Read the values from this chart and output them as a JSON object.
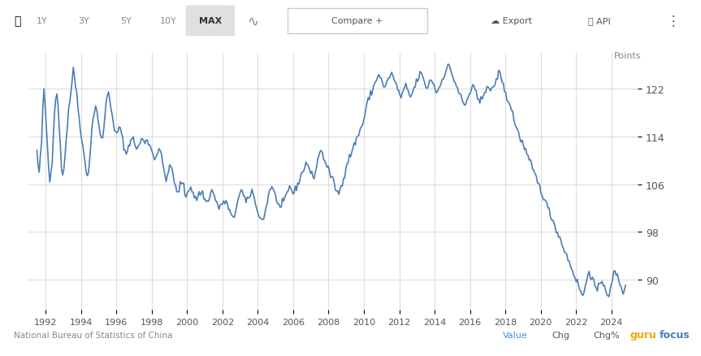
{
  "title": "",
  "ylabel": "Points",
  "xlabel": "",
  "bg_color": "#ffffff",
  "plot_bg_color": "#ffffff",
  "grid_color": "#dddddd",
  "line_color": "#4a7db5",
  "line_width": 1.2,
  "ylim": [
    85,
    128
  ],
  "yticks": [
    90,
    98,
    106,
    114,
    122
  ],
  "xtick_years": [
    1992,
    1994,
    1996,
    1998,
    2000,
    2002,
    2004,
    2006,
    2008,
    2010,
    2012,
    2014,
    2016,
    2018,
    2020,
    2022,
    2024
  ],
  "footer_left": "National Bureau of Statistics of China",
  "footer_right_value": "Value",
  "footer_right_chg": "Chg",
  "footer_right_chgpct": "Chg%",
  "header_tabs": [
    "1Y",
    "3Y",
    "5Y",
    "10Y",
    "MAX"
  ],
  "header_active": "MAX",
  "points_label": "Points",
  "x_start": 1991.5,
  "x_end": 2024.8,
  "xlim_left": 1991.0,
  "xlim_right": 2025.5,
  "series": [
    111.5,
    109.2,
    107.8,
    110.5,
    113.0,
    118.5,
    121.5,
    119.0,
    116.0,
    112.5,
    109.0,
    106.5,
    108.0,
    110.0,
    114.5,
    118.0,
    120.5,
    121.0,
    119.5,
    116.0,
    112.0,
    108.5,
    107.5,
    109.0,
    111.0,
    113.5,
    116.0,
    118.5,
    120.0,
    121.5,
    123.5,
    125.0,
    124.0,
    122.5,
    121.0,
    119.0,
    117.0,
    115.5,
    114.0,
    112.5,
    111.0,
    109.5,
    108.0,
    107.5,
    108.5,
    110.5,
    113.0,
    115.5,
    117.0,
    118.5,
    119.0,
    118.5,
    117.0,
    115.5,
    114.0,
    113.5,
    114.0,
    115.5,
    117.5,
    119.5,
    121.0,
    121.5,
    120.5,
    119.0,
    117.5,
    116.0,
    115.0,
    114.5,
    114.5,
    115.0,
    115.5,
    115.0,
    114.5,
    113.5,
    112.5,
    111.5,
    111.0,
    111.5,
    112.5,
    113.0,
    113.5,
    113.5,
    113.5,
    113.0,
    112.5,
    112.0,
    112.0,
    112.5,
    113.0,
    113.5,
    113.5,
    113.0,
    113.0,
    113.5,
    113.5,
    113.0,
    112.5,
    112.0,
    111.5,
    111.0,
    110.5,
    110.5,
    111.0,
    111.5,
    112.0,
    111.5,
    110.5,
    109.5,
    108.5,
    107.5,
    107.0,
    107.5,
    108.0,
    108.5,
    109.0,
    108.5,
    107.5,
    106.5,
    105.5,
    104.5,
    104.5,
    105.0,
    106.0,
    106.5,
    106.0,
    105.5,
    104.5,
    104.0,
    104.5,
    105.0,
    105.5,
    105.5,
    105.0,
    104.5,
    104.0,
    103.5,
    103.5,
    104.0,
    104.5,
    104.5,
    104.5,
    104.5,
    104.0,
    103.5,
    103.0,
    103.0,
    103.5,
    104.0,
    104.5,
    105.0,
    104.5,
    104.0,
    103.5,
    103.0,
    102.5,
    102.0,
    102.0,
    102.5,
    103.0,
    103.0,
    103.0,
    103.0,
    102.5,
    102.0,
    101.5,
    101.0,
    100.5,
    100.0,
    100.5,
    101.5,
    102.5,
    103.5,
    104.0,
    104.5,
    105.0,
    104.5,
    104.0,
    103.5,
    103.0,
    103.0,
    103.5,
    104.0,
    104.5,
    105.0,
    104.5,
    103.5,
    102.5,
    102.0,
    101.5,
    101.0,
    100.5,
    100.0,
    100.0,
    100.5,
    101.0,
    102.0,
    103.0,
    104.0,
    105.0,
    105.5,
    105.5,
    105.0,
    104.5,
    104.0,
    103.5,
    103.0,
    102.5,
    102.0,
    102.0,
    102.5,
    103.0,
    103.5,
    104.0,
    104.5,
    105.0,
    105.5,
    105.5,
    105.0,
    104.5,
    104.5,
    105.0,
    105.5,
    106.0,
    106.5,
    107.0,
    107.5,
    108.0,
    108.5,
    109.0,
    109.5,
    109.5,
    109.0,
    108.5,
    108.0,
    107.5,
    107.0,
    107.5,
    108.0,
    109.0,
    110.0,
    111.0,
    111.5,
    111.5,
    111.0,
    110.5,
    110.0,
    109.5,
    109.0,
    108.5,
    108.0,
    107.5,
    107.0,
    106.5,
    106.0,
    105.5,
    105.0,
    104.5,
    104.5,
    105.0,
    105.5,
    106.0,
    107.0,
    108.0,
    109.0,
    109.5,
    110.0,
    110.5,
    111.0,
    111.5,
    112.0,
    112.5,
    113.0,
    113.5,
    114.0,
    114.5,
    115.0,
    115.5,
    116.0,
    116.5,
    117.5,
    118.5,
    119.5,
    120.0,
    120.5,
    121.0,
    121.5,
    122.0,
    122.5,
    123.0,
    123.5,
    124.0,
    124.5,
    124.0,
    123.5,
    123.0,
    122.5,
    122.0,
    122.5,
    123.0,
    123.5,
    124.0,
    124.5,
    124.5,
    124.0,
    123.5,
    123.0,
    122.5,
    122.0,
    121.5,
    121.0,
    120.5,
    121.0,
    121.5,
    122.0,
    122.5,
    122.0,
    121.5,
    121.0,
    120.5,
    121.0,
    121.5,
    122.0,
    122.5,
    123.0,
    123.5,
    124.0,
    124.5,
    124.5,
    124.0,
    123.5,
    123.0,
    122.5,
    122.0,
    122.5,
    123.0,
    123.5,
    123.5,
    123.0,
    122.5,
    122.0,
    121.5,
    121.5,
    122.0,
    122.5,
    123.0,
    123.5,
    124.0,
    124.5,
    125.0,
    125.5,
    126.0,
    125.5,
    125.0,
    124.5,
    124.0,
    123.5,
    123.0,
    122.5,
    122.0,
    121.5,
    121.0,
    120.5,
    120.0,
    119.5,
    119.0,
    119.5,
    120.0,
    120.5,
    121.0,
    121.5,
    122.0,
    122.5,
    122.0,
    121.5,
    121.0,
    120.5,
    120.0,
    119.5,
    120.0,
    120.5,
    121.0,
    121.5,
    122.0,
    122.5,
    122.5,
    122.0,
    121.5,
    121.5,
    122.0,
    122.5,
    123.0,
    123.5,
    124.0,
    124.5,
    124.5,
    124.0,
    123.5,
    122.5,
    121.5,
    121.0,
    120.5,
    120.0,
    119.5,
    119.0,
    118.5,
    118.0,
    117.0,
    116.0,
    115.5,
    115.0,
    114.5,
    114.0,
    113.5,
    113.0,
    112.5,
    112.0,
    111.5,
    111.0,
    110.5,
    110.0,
    109.5,
    109.0,
    108.5,
    108.0,
    107.5,
    107.0,
    106.5,
    106.0,
    105.5,
    105.0,
    104.5,
    104.0,
    103.5,
    103.0,
    102.5,
    102.0,
    101.5,
    101.0,
    100.5,
    100.0,
    99.5,
    99.0,
    98.5,
    98.0,
    97.5,
    97.0,
    96.5,
    96.0,
    95.5,
    95.0,
    94.5,
    94.0,
    93.5,
    93.0,
    92.5,
    92.0,
    91.5,
    91.0,
    90.5,
    90.0,
    89.5,
    89.0,
    88.5,
    88.0,
    87.5,
    87.5,
    88.0,
    89.0,
    90.0,
    91.0,
    91.5,
    91.0,
    90.5,
    90.0,
    89.5,
    89.0,
    88.5,
    88.0,
    88.5,
    89.0,
    89.5,
    90.0,
    89.5,
    89.0,
    88.5,
    88.0,
    87.5,
    87.5,
    88.0,
    89.0,
    90.0,
    91.0,
    91.5,
    91.0,
    90.5,
    90.0,
    89.5,
    89.0,
    88.5,
    88.0,
    88.0,
    88.5
  ]
}
